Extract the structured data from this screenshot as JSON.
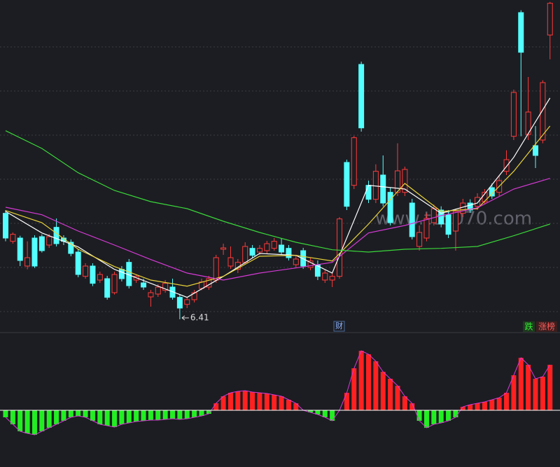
{
  "chart_data": {
    "type": "candlestick",
    "ylim": [
      6.2,
      13.25
    ],
    "grid": true,
    "color_up": "#ff3a3a",
    "color_down": "#54ffff",
    "open": [
      8.68,
      8.08,
      8.15,
      7.55,
      8.15,
      8.18,
      8.0,
      8.38,
      8.15,
      8.06,
      7.85,
      7.33,
      7.55,
      7.25,
      7.28,
      6.98,
      7.48,
      7.63,
      7.25,
      7.19,
      6.89,
      6.95,
      7.03,
      7.1,
      6.88,
      6.73,
      6.83,
      7.07,
      7.1,
      7.25,
      7.91,
      7.55,
      7.48,
      7.63,
      7.93,
      7.85,
      7.88,
      7.93,
      8.0,
      7.93,
      7.58,
      7.88,
      7.52,
      7.58,
      7.25,
      7.25,
      7.33,
      9.77,
      9.28,
      11.87,
      9.28,
      8.98,
      9.5,
      9.13,
      9.13,
      9.13,
      8.9,
      7.97,
      8.15,
      8.48,
      8.75,
      8.65,
      8.3,
      8.68,
      8.9,
      8.83,
      8.93,
      9.23,
      9.13,
      9.58,
      10.33,
      12.98,
      10.37,
      10.13,
      10.25,
      12.5
    ],
    "high": [
      8.75,
      8.27,
      8.2,
      8.08,
      8.21,
      8.23,
      8.24,
      8.57,
      8.21,
      8.12,
      7.91,
      7.61,
      7.61,
      7.43,
      7.34,
      7.43,
      7.55,
      7.7,
      7.37,
      7.28,
      7.04,
      7.16,
      7.25,
      7.28,
      6.95,
      6.89,
      7.04,
      7.28,
      7.34,
      7.79,
      8.03,
      7.97,
      7.7,
      8.06,
      8.0,
      8.0,
      8.09,
      8.15,
      8.15,
      8.0,
      7.79,
      7.94,
      7.73,
      7.67,
      7.46,
      7.4,
      8.6,
      9.83,
      10.34,
      11.93,
      9.38,
      9.73,
      9.92,
      9.23,
      10.18,
      9.68,
      8.99,
      8.42,
      8.68,
      8.87,
      8.83,
      8.75,
      8.78,
      8.99,
      8.98,
      9.11,
      9.2,
      9.32,
      9.5,
      10.03,
      11.33,
      13.03,
      11.6,
      10.55,
      11.53,
      13.21
    ],
    "low": [
      8.08,
      8.03,
      7.55,
      7.48,
      7.51,
      7.84,
      7.94,
      7.97,
      8.0,
      7.76,
      7.31,
      7.28,
      7.12,
      7.19,
      6.83,
      6.94,
      7.22,
      7.07,
      7.19,
      7.04,
      6.68,
      6.89,
      6.98,
      6.83,
      6.41,
      6.65,
      6.77,
      7.03,
      7.04,
      7.19,
      7.79,
      7.49,
      7.4,
      7.58,
      7.73,
      7.79,
      7.82,
      7.88,
      7.79,
      7.67,
      7.52,
      7.49,
      7.46,
      7.25,
      7.19,
      7.1,
      7.28,
      8.75,
      9.2,
      10.43,
      8.9,
      8.9,
      8.83,
      8.42,
      9.05,
      9.05,
      8.12,
      7.88,
      8.08,
      8.42,
      8.38,
      8.15,
      7.88,
      8.6,
      8.69,
      8.75,
      8.87,
      8.99,
      9.05,
      9.5,
      10.25,
      10.33,
      10.25,
      9.65,
      10.18,
      11.98
    ],
    "close": [
      8.15,
      8.23,
      7.67,
      7.73,
      7.55,
      7.88,
      8.18,
      8.03,
      8.08,
      7.82,
      7.37,
      7.55,
      7.18,
      7.37,
      6.88,
      7.37,
      7.28,
      7.13,
      7.33,
      7.1,
      6.98,
      7.1,
      7.18,
      6.88,
      6.65,
      6.83,
      6.98,
      7.21,
      7.28,
      7.73,
      7.94,
      7.73,
      7.63,
      7.97,
      7.78,
      7.93,
      8.03,
      8.08,
      7.85,
      7.73,
      7.7,
      7.55,
      7.66,
      7.33,
      7.4,
      7.33,
      8.56,
      8.83,
      10.3,
      10.51,
      8.98,
      9.58,
      8.9,
      8.48,
      9.59,
      9.62,
      8.18,
      8.27,
      8.57,
      8.78,
      8.45,
      8.23,
      8.72,
      8.9,
      8.75,
      9.02,
      9.13,
      9.05,
      9.38,
      9.83,
      11.27,
      12.13,
      10.85,
      9.92,
      11.48,
      13.18
    ],
    "moving_averages": [
      {
        "color": "#ffffff",
        "x": [
          0,
          5,
          10,
          15,
          20,
          25,
          30,
          35,
          40,
          45,
          50,
          55,
          60,
          65,
          70,
          75
        ],
        "values": [
          8.72,
          8.26,
          7.96,
          7.48,
          7.18,
          6.88,
          7.33,
          7.82,
          7.78,
          7.4,
          9.28,
          9.2,
          8.68,
          8.9,
          9.88,
          11.15
        ]
      },
      {
        "color": "#e8d23a",
        "x": [
          0,
          5,
          10,
          15,
          20,
          25,
          30,
          35,
          40,
          45,
          50,
          55,
          60,
          65,
          70,
          75
        ],
        "values": [
          8.74,
          8.48,
          7.91,
          7.54,
          7.25,
          7.12,
          7.33,
          7.76,
          7.78,
          7.66,
          8.45,
          9.32,
          8.72,
          8.78,
          9.58,
          10.55
        ]
      },
      {
        "color": "#d63ad6",
        "x": [
          0,
          5,
          10,
          15,
          20,
          25,
          30,
          35,
          40,
          45,
          50,
          55,
          60,
          65,
          70,
          75
        ],
        "values": [
          8.81,
          8.65,
          8.3,
          8.0,
          7.69,
          7.4,
          7.25,
          7.4,
          7.51,
          7.63,
          8.26,
          8.42,
          8.63,
          8.8,
          9.2,
          9.43
        ]
      },
      {
        "color": "#3ad63a",
        "x": [
          0,
          5,
          10,
          15,
          20,
          25,
          30,
          35,
          40,
          45,
          50,
          55,
          60,
          65,
          70,
          75
        ],
        "values": [
          10.45,
          10.07,
          9.55,
          9.17,
          8.93,
          8.78,
          8.51,
          8.27,
          8.06,
          7.9,
          7.85,
          7.91,
          7.93,
          7.97,
          8.2,
          8.45
        ]
      }
    ],
    "low_label": "6.41",
    "low_index": 24,
    "watermark": "www.tc5070.com",
    "badge_left": "财",
    "badge_fall": "跌",
    "badge_rise": "涨榜",
    "indicator": {
      "type": "bar",
      "ylim": [
        -80,
        106
      ],
      "color_pos": "#ff2020",
      "color_neg": "#22ee22",
      "values": [
        -10,
        -20,
        -30,
        -33,
        -35,
        -30,
        -25,
        -20,
        -15,
        -10,
        -8,
        -10,
        -15,
        -20,
        -22,
        -24,
        -20,
        -18,
        -16,
        -15,
        -14,
        -14,
        -13,
        -12,
        -13,
        -12,
        -10,
        -8,
        -5,
        10,
        20,
        25,
        27,
        28,
        26,
        25,
        24,
        22,
        20,
        15,
        10,
        0,
        -3,
        -6,
        -10,
        -15,
        0,
        25,
        60,
        85,
        80,
        70,
        55,
        45,
        35,
        20,
        10,
        -15,
        -25,
        -20,
        -18,
        -15,
        -10,
        5,
        8,
        10,
        12,
        15,
        18,
        25,
        50,
        75,
        65,
        45,
        48,
        65
      ]
    }
  }
}
